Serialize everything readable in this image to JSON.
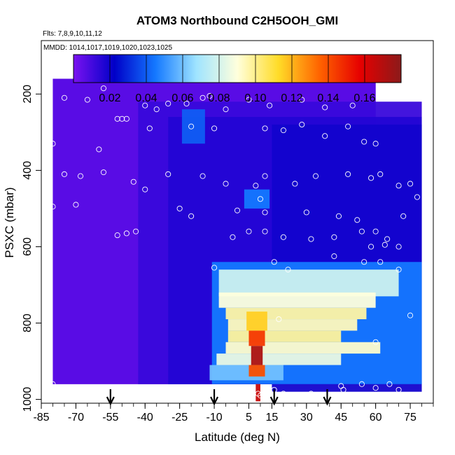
{
  "chart_data": {
    "type": "heatmap",
    "title": "ATOM3 Northbound C2H5OOH_GMI",
    "subtitle_flights": "Flts: 7,8,9,10,11,12",
    "subtitle_dates": "MMDD: 1014,1017,1019,1020,1023,1025",
    "xlabel": "Latitude (deg N)",
    "ylabel": "PSXC (mbar)",
    "xlim": [
      -85,
      85
    ],
    "ylim": [
      1010,
      60
    ],
    "x_ticks": [
      -85,
      -70,
      -55,
      -40,
      -25,
      -10,
      5,
      15,
      30,
      45,
      60,
      75
    ],
    "y_ticks": [
      200,
      400,
      600,
      800,
      1000
    ],
    "colorbar": {
      "range": [
        0,
        0.18
      ],
      "ticks": [
        "0.02",
        "0.04",
        "0.06",
        "0.08",
        "0.10",
        "0.12",
        "0.14",
        "0.16"
      ],
      "colors": [
        "#7a12f0",
        "#0000c8",
        "#1478ff",
        "#9fe4ff",
        "#ffffdc",
        "#ffdc28",
        "#ff6400",
        "#e60000",
        "#8b1a1a"
      ]
    },
    "background_value": 0.005,
    "field_regions": [
      {
        "lat": [
          -80,
          60
        ],
        "p": [
          160,
          960
        ],
        "value": 0.006
      },
      {
        "lat": [
          -43,
          80
        ],
        "p": [
          220,
          960
        ],
        "value": 0.012
      },
      {
        "lat": [
          -30,
          80
        ],
        "p": [
          260,
          960
        ],
        "value": 0.016
      },
      {
        "lat": [
          15,
          80
        ],
        "p": [
          280,
          980
        ],
        "value": 0.019
      },
      {
        "lat": [
          -24,
          -14
        ],
        "p": [
          240,
          330
        ],
        "value": 0.04
      },
      {
        "lat": [
          3,
          14
        ],
        "p": [
          450,
          500
        ],
        "value": 0.045
      },
      {
        "lat": [
          -11,
          80
        ],
        "p": [
          640,
          960
        ],
        "value": 0.045
      },
      {
        "lat": [
          -8,
          70
        ],
        "p": [
          660,
          730
        ],
        "value": 0.078
      },
      {
        "lat": [
          -8,
          60
        ],
        "p": [
          720,
          760
        ],
        "value": 0.09
      },
      {
        "lat": [
          -5,
          56
        ],
        "p": [
          760,
          790
        ],
        "value": 0.097
      },
      {
        "lat": [
          -4,
          52
        ],
        "p": [
          790,
          820
        ],
        "value": 0.094
      },
      {
        "lat": [
          -4,
          45
        ],
        "p": [
          820,
          850
        ],
        "value": 0.098
      },
      {
        "lat": [
          -5,
          62
        ],
        "p": [
          850,
          880
        ],
        "value": 0.092
      },
      {
        "lat": [
          -9,
          45
        ],
        "p": [
          880,
          910
        ],
        "value": 0.085
      },
      {
        "lat": [
          -12,
          20
        ],
        "p": [
          910,
          950
        ],
        "value": 0.06
      },
      {
        "lat": [
          4,
          13
        ],
        "p": [
          770,
          820
        ],
        "value": 0.115
      },
      {
        "lat": [
          5,
          12
        ],
        "p": [
          820,
          860
        ],
        "value": 0.145
      },
      {
        "lat": [
          6,
          11
        ],
        "p": [
          860,
          910
        ],
        "value": 0.172
      },
      {
        "lat": [
          5,
          12
        ],
        "p": [
          910,
          940
        ],
        "value": 0.14
      },
      {
        "lat": [
          8,
          10
        ],
        "p": [
          960,
          1005
        ],
        "value": 0.165
      }
    ],
    "observations": [
      [
        -75,
        210
      ],
      [
        -65,
        215
      ],
      [
        -58,
        185
      ],
      [
        -40,
        230
      ],
      [
        -35,
        240
      ],
      [
        -30,
        225
      ],
      [
        -22,
        225
      ],
      [
        -15,
        210
      ],
      [
        -12,
        205
      ],
      [
        -5,
        240
      ],
      [
        5,
        215
      ],
      [
        14,
        230
      ],
      [
        28,
        215
      ],
      [
        38,
        235
      ],
      [
        50,
        230
      ],
      [
        -52,
        265
      ],
      [
        -50,
        265
      ],
      [
        -48,
        265
      ],
      [
        -38,
        290
      ],
      [
        -20,
        285
      ],
      [
        -10,
        290
      ],
      [
        12,
        290
      ],
      [
        20,
        295
      ],
      [
        28,
        280
      ],
      [
        38,
        310
      ],
      [
        48,
        285
      ],
      [
        55,
        325
      ],
      [
        60,
        330
      ],
      [
        -80,
        330
      ],
      [
        -60,
        345
      ],
      [
        -75,
        410
      ],
      [
        -68,
        415
      ],
      [
        -58,
        405
      ],
      [
        -30,
        410
      ],
      [
        -45,
        430
      ],
      [
        -40,
        450
      ],
      [
        -15,
        415
      ],
      [
        -5,
        435
      ],
      [
        8,
        440
      ],
      [
        12,
        415
      ],
      [
        25,
        435
      ],
      [
        34,
        415
      ],
      [
        48,
        410
      ],
      [
        58,
        420
      ],
      [
        62,
        410
      ],
      [
        70,
        440
      ],
      [
        75,
        435
      ],
      [
        -80,
        495
      ],
      [
        -70,
        490
      ],
      [
        -52,
        570
      ],
      [
        -48,
        565
      ],
      [
        -44,
        560
      ],
      [
        -25,
        500
      ],
      [
        -20,
        520
      ],
      [
        0,
        505
      ],
      [
        10,
        475
      ],
      [
        12,
        510
      ],
      [
        30,
        510
      ],
      [
        44,
        520
      ],
      [
        52,
        530
      ],
      [
        60,
        560
      ],
      [
        65,
        580
      ],
      [
        72,
        520
      ],
      [
        78,
        470
      ],
      [
        -2,
        575
      ],
      [
        5,
        560
      ],
      [
        12,
        560
      ],
      [
        20,
        575
      ],
      [
        32,
        580
      ],
      [
        42,
        575
      ],
      [
        54,
        560
      ],
      [
        58,
        600
      ],
      [
        64,
        595
      ],
      [
        70,
        600
      ],
      [
        16,
        640
      ],
      [
        22,
        660
      ],
      [
        42,
        625
      ],
      [
        55,
        640
      ],
      [
        62,
        640
      ],
      [
        -10,
        655
      ],
      [
        70,
        660
      ],
      [
        75,
        780
      ],
      [
        18,
        790
      ],
      [
        60,
        850
      ],
      [
        -80,
        960
      ],
      [
        -40,
        995
      ],
      [
        -30,
        985
      ],
      [
        -18,
        990
      ],
      [
        -5,
        990
      ],
      [
        4,
        985
      ],
      [
        10,
        990
      ],
      [
        16,
        975
      ],
      [
        20,
        985
      ],
      [
        26,
        990
      ],
      [
        32,
        985
      ],
      [
        38,
        990
      ],
      [
        46,
        975
      ],
      [
        54,
        960
      ],
      [
        60,
        970
      ],
      [
        66,
        960
      ],
      [
        70,
        975
      ],
      [
        -12,
        975
      ],
      [
        9,
        985
      ],
      [
        45,
        965
      ]
    ],
    "arrows_lat": [
      -55,
      -10,
      16,
      39
    ],
    "grid": false,
    "legend_placement": "top-colorbar"
  }
}
